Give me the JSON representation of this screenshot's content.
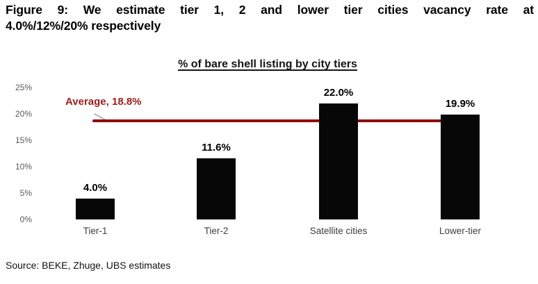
{
  "figure": {
    "title_line1": "Figure 9: We estimate tier 1, 2 and lower tier cities vacancy rate at",
    "title_line2": "4.0%/12%/20% respectively",
    "source": "Source: BEKE, Zhuge, UBS estimates"
  },
  "chart_data": {
    "type": "bar",
    "title": "% of bare shell listing by city tiers",
    "categories": [
      "Tier-1",
      "Tier-2",
      "Satellite cities",
      "Lower-tier"
    ],
    "values": [
      4.0,
      11.6,
      22.0,
      19.9
    ],
    "value_labels": [
      "4.0%",
      "11.6%",
      "22.0%",
      "19.9%"
    ],
    "xlabel": "",
    "ylabel": "",
    "ylim": [
      0,
      25
    ],
    "ytick_step": 5,
    "ytick_labels": [
      "0%",
      "5%",
      "10%",
      "15%",
      "20%",
      "25%"
    ],
    "grid": false,
    "legend": "none",
    "bar_color": "#070707",
    "average_line": {
      "label": "Average, 18.8%",
      "value": 18.8,
      "line_color": "#8f0c0c",
      "label_color": "#9c1d1d"
    }
  }
}
